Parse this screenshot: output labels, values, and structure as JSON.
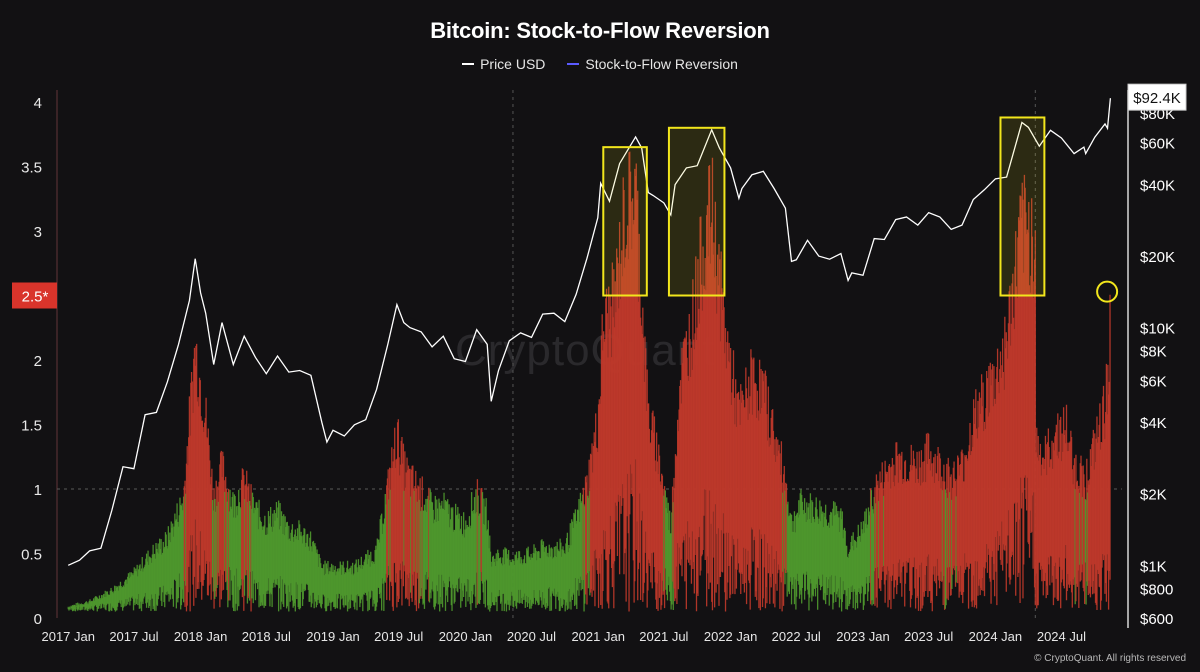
{
  "chart_data": {
    "type": "line",
    "title": "Bitcoin: Stock-to-Flow Reversion",
    "legend": [
      {
        "label": "Price USD",
        "color": "#ffffff"
      },
      {
        "label": "Stock-to-Flow Reversion",
        "color": "#5b5bff"
      }
    ],
    "legend_position": "top-center",
    "x_axis": {
      "range": [
        "2016-12-01",
        "2024-12-15"
      ],
      "ticks": [
        {
          "date": "2017-01-01",
          "label": "2017 Jan"
        },
        {
          "date": "2017-07-01",
          "label": "2017 Jul"
        },
        {
          "date": "2018-01-01",
          "label": "2018 Jan"
        },
        {
          "date": "2018-07-01",
          "label": "2018 Jul"
        },
        {
          "date": "2019-01-01",
          "label": "2019 Jan"
        },
        {
          "date": "2019-07-01",
          "label": "2019 Jul"
        },
        {
          "date": "2020-01-01",
          "label": "2020 Jan"
        },
        {
          "date": "2020-07-01",
          "label": "2020 Jul"
        },
        {
          "date": "2021-01-01",
          "label": "2021 Jan"
        },
        {
          "date": "2021-07-01",
          "label": "2021 Jul"
        },
        {
          "date": "2022-01-01",
          "label": "2022 Jan"
        },
        {
          "date": "2022-07-01",
          "label": "2022 Jul"
        },
        {
          "date": "2023-01-01",
          "label": "2023 Jan"
        },
        {
          "date": "2023-07-01",
          "label": "2023 Jul"
        },
        {
          "date": "2024-01-01",
          "label": "2024 Jan"
        },
        {
          "date": "2024-07-01",
          "label": "2024 Jul"
        }
      ],
      "halving_lines": [
        "2020-05-11",
        "2024-04-20"
      ]
    },
    "y_left": {
      "range": [
        0,
        4
      ],
      "scale": "linear",
      "ticks": [
        {
          "value": 0,
          "label": "0"
        },
        {
          "value": 0.5,
          "label": "0.5"
        },
        {
          "value": 1,
          "label": "1"
        },
        {
          "value": 1.5,
          "label": "1.5"
        },
        {
          "value": 2,
          "label": "2"
        },
        {
          "value": 3,
          "label": "3"
        },
        {
          "value": 3.5,
          "label": "3.5"
        },
        {
          "value": 4,
          "label": "4"
        }
      ],
      "marker": {
        "value": 2.5,
        "label": "2.5*",
        "color": "#d9342b"
      },
      "reference_line": 1
    },
    "y_right": {
      "range": [
        600,
        100000
      ],
      "scale": "log",
      "ticks": [
        {
          "value": 600,
          "label": "$600"
        },
        {
          "value": 800,
          "label": "$800"
        },
        {
          "value": 1000,
          "label": "$1K"
        },
        {
          "value": 2000,
          "label": "$2K"
        },
        {
          "value": 4000,
          "label": "$4K"
        },
        {
          "value": 6000,
          "label": "$6K"
        },
        {
          "value": 8000,
          "label": "$8K"
        },
        {
          "value": 10000,
          "label": "$10K"
        },
        {
          "value": 20000,
          "label": "$20K"
        },
        {
          "value": 40000,
          "label": "$40K"
        },
        {
          "value": 60000,
          "label": "$60K"
        },
        {
          "value": 80000,
          "label": "$80K"
        }
      ],
      "current_price_label": "$92.4K"
    },
    "series_colors": {
      "s2f_below_1": "#4f9a2e",
      "s2f_above_1": "#c0392b"
    },
    "price_series": [
      [
        "2017-01-01",
        1000
      ],
      [
        "2017-02-01",
        1050
      ],
      [
        "2017-03-01",
        1150
      ],
      [
        "2017-04-01",
        1180
      ],
      [
        "2017-05-01",
        1700
      ],
      [
        "2017-06-01",
        2600
      ],
      [
        "2017-07-01",
        2550
      ],
      [
        "2017-08-01",
        4300
      ],
      [
        "2017-09-01",
        4400
      ],
      [
        "2017-10-01",
        5900
      ],
      [
        "2017-11-01",
        8500
      ],
      [
        "2017-12-01",
        13000
      ],
      [
        "2017-12-17",
        19500
      ],
      [
        "2018-01-01",
        14000
      ],
      [
        "2018-01-15",
        11500
      ],
      [
        "2018-02-06",
        7000
      ],
      [
        "2018-03-01",
        10500
      ],
      [
        "2018-04-01",
        7000
      ],
      [
        "2018-05-01",
        9200
      ],
      [
        "2018-06-01",
        7500
      ],
      [
        "2018-07-01",
        6400
      ],
      [
        "2018-08-01",
        7600
      ],
      [
        "2018-09-01",
        6500
      ],
      [
        "2018-10-01",
        6600
      ],
      [
        "2018-11-01",
        6300
      ],
      [
        "2018-12-01",
        4000
      ],
      [
        "2018-12-15",
        3300
      ],
      [
        "2019-01-01",
        3700
      ],
      [
        "2019-02-01",
        3500
      ],
      [
        "2019-03-01",
        3900
      ],
      [
        "2019-04-01",
        4100
      ],
      [
        "2019-05-01",
        5500
      ],
      [
        "2019-06-01",
        8500
      ],
      [
        "2019-06-26",
        12500
      ],
      [
        "2019-07-15",
        10500
      ],
      [
        "2019-08-01",
        10000
      ],
      [
        "2019-09-01",
        9600
      ],
      [
        "2019-10-01",
        8300
      ],
      [
        "2019-11-01",
        9200
      ],
      [
        "2019-12-01",
        7400
      ],
      [
        "2020-01-01",
        7200
      ],
      [
        "2020-02-01",
        9800
      ],
      [
        "2020-03-01",
        8500
      ],
      [
        "2020-03-12",
        4900
      ],
      [
        "2020-04-01",
        6600
      ],
      [
        "2020-05-01",
        8800
      ],
      [
        "2020-06-01",
        9500
      ],
      [
        "2020-07-01",
        9100
      ],
      [
        "2020-08-01",
        11400
      ],
      [
        "2020-09-01",
        11500
      ],
      [
        "2020-10-01",
        10600
      ],
      [
        "2020-11-01",
        13800
      ],
      [
        "2020-12-01",
        19600
      ],
      [
        "2020-12-31",
        29000
      ],
      [
        "2021-01-08",
        40500
      ],
      [
        "2021-02-01",
        34000
      ],
      [
        "2021-03-01",
        49000
      ],
      [
        "2021-04-14",
        63500
      ],
      [
        "2021-05-01",
        57000
      ],
      [
        "2021-05-19",
        37000
      ],
      [
        "2021-06-01",
        36000
      ],
      [
        "2021-07-01",
        33500
      ],
      [
        "2021-07-20",
        29800
      ],
      [
        "2021-08-01",
        40000
      ],
      [
        "2021-09-01",
        47000
      ],
      [
        "2021-10-01",
        48000
      ],
      [
        "2021-11-10",
        68000
      ],
      [
        "2021-12-01",
        57000
      ],
      [
        "2022-01-01",
        47000
      ],
      [
        "2022-01-24",
        35000
      ],
      [
        "2022-02-01",
        38500
      ],
      [
        "2022-03-01",
        44000
      ],
      [
        "2022-04-01",
        45500
      ],
      [
        "2022-05-01",
        38500
      ],
      [
        "2022-06-01",
        31800
      ],
      [
        "2022-06-18",
        19000
      ],
      [
        "2022-07-01",
        19300
      ],
      [
        "2022-08-01",
        23300
      ],
      [
        "2022-09-01",
        20000
      ],
      [
        "2022-10-01",
        19400
      ],
      [
        "2022-11-01",
        20500
      ],
      [
        "2022-11-21",
        15800
      ],
      [
        "2022-12-01",
        17000
      ],
      [
        "2023-01-01",
        16600
      ],
      [
        "2023-02-01",
        23700
      ],
      [
        "2023-03-01",
        23500
      ],
      [
        "2023-04-01",
        28500
      ],
      [
        "2023-05-01",
        29200
      ],
      [
        "2023-06-01",
        27000
      ],
      [
        "2023-07-01",
        30500
      ],
      [
        "2023-08-01",
        29200
      ],
      [
        "2023-09-01",
        25900
      ],
      [
        "2023-10-01",
        27000
      ],
      [
        "2023-11-01",
        34600
      ],
      [
        "2023-12-01",
        38000
      ],
      [
        "2024-01-01",
        42300
      ],
      [
        "2024-02-01",
        43000
      ],
      [
        "2024-03-01",
        62000
      ],
      [
        "2024-03-14",
        73000
      ],
      [
        "2024-04-01",
        69700
      ],
      [
        "2024-05-01",
        58000
      ],
      [
        "2024-06-01",
        67700
      ],
      [
        "2024-07-01",
        62800
      ],
      [
        "2024-08-05",
        54000
      ],
      [
        "2024-09-01",
        57500
      ],
      [
        "2024-09-06",
        54000
      ],
      [
        "2024-10-01",
        63300
      ],
      [
        "2024-10-29",
        72000
      ],
      [
        "2024-11-05",
        69000
      ],
      [
        "2024-11-13",
        92400
      ]
    ],
    "s2f_series": [
      [
        "2017-01-01",
        0.09
      ],
      [
        "2017-03-01",
        0.13
      ],
      [
        "2017-05-01",
        0.22
      ],
      [
        "2017-07-01",
        0.35
      ],
      [
        "2017-08-15",
        0.5
      ],
      [
        "2017-10-01",
        0.62
      ],
      [
        "2017-11-15",
        0.95
      ],
      [
        "2017-12-17",
        2.15
      ],
      [
        "2018-01-15",
        1.6
      ],
      [
        "2018-02-06",
        0.95
      ],
      [
        "2018-03-01",
        1.2
      ],
      [
        "2018-04-01",
        0.9
      ],
      [
        "2018-05-01",
        1.08
      ],
      [
        "2018-06-01",
        0.85
      ],
      [
        "2018-07-01",
        0.76
      ],
      [
        "2018-08-01",
        0.83
      ],
      [
        "2018-09-01",
        0.7
      ],
      [
        "2018-10-01",
        0.68
      ],
      [
        "2018-11-01",
        0.62
      ],
      [
        "2018-12-01",
        0.4
      ],
      [
        "2019-01-01",
        0.4
      ],
      [
        "2019-03-01",
        0.4
      ],
      [
        "2019-05-01",
        0.52
      ],
      [
        "2019-06-26",
        1.45
      ],
      [
        "2019-07-15",
        1.2
      ],
      [
        "2019-08-01",
        1.1
      ],
      [
        "2019-09-01",
        1.0
      ],
      [
        "2019-10-01",
        0.87
      ],
      [
        "2019-11-01",
        0.88
      ],
      [
        "2019-12-01",
        0.8
      ],
      [
        "2020-01-01",
        0.75
      ],
      [
        "2020-02-01",
        0.98
      ],
      [
        "2020-03-01",
        0.82
      ],
      [
        "2020-03-12",
        0.45
      ],
      [
        "2020-04-01",
        0.5
      ],
      [
        "2020-05-11",
        0.48
      ],
      [
        "2020-07-01",
        0.5
      ],
      [
        "2020-08-01",
        0.55
      ],
      [
        "2020-10-01",
        0.55
      ],
      [
        "2020-11-01",
        0.78
      ],
      [
        "2020-12-01",
        1.05
      ],
      [
        "2020-12-31",
        1.55
      ],
      [
        "2021-01-15",
        2.3
      ],
      [
        "2021-02-15",
        2.5
      ],
      [
        "2021-03-15",
        3.2
      ],
      [
        "2021-04-14",
        3.4
      ],
      [
        "2021-05-19",
        1.6
      ],
      [
        "2021-06-15",
        1.3
      ],
      [
        "2021-07-20",
        0.72
      ],
      [
        "2021-08-15",
        1.9
      ],
      [
        "2021-09-15",
        2.3
      ],
      [
        "2021-10-15",
        2.9
      ],
      [
        "2021-11-10",
        3.25
      ],
      [
        "2021-12-15",
        2.3
      ],
      [
        "2022-01-24",
        1.6
      ],
      [
        "2022-03-01",
        1.9
      ],
      [
        "2022-04-01",
        1.8
      ],
      [
        "2022-05-01",
        1.45
      ],
      [
        "2022-06-01",
        1.1
      ],
      [
        "2022-06-18",
        0.75
      ],
      [
        "2022-07-15",
        0.9
      ],
      [
        "2022-09-01",
        0.85
      ],
      [
        "2022-11-01",
        0.8
      ],
      [
        "2022-11-21",
        0.55
      ],
      [
        "2023-01-01",
        0.7
      ],
      [
        "2023-02-01",
        1.0
      ],
      [
        "2023-04-01",
        1.25
      ],
      [
        "2023-06-01",
        1.2
      ],
      [
        "2023-07-01",
        1.3
      ],
      [
        "2023-09-01",
        1.1
      ],
      [
        "2023-10-01",
        1.2
      ],
      [
        "2023-11-01",
        1.55
      ],
      [
        "2023-12-01",
        1.75
      ],
      [
        "2024-01-01",
        1.9
      ],
      [
        "2024-02-01",
        2.2
      ],
      [
        "2024-03-14",
        3.1
      ],
      [
        "2024-04-20",
        3.0
      ],
      [
        "2024-04-21",
        1.4
      ],
      [
        "2024-05-15",
        1.25
      ],
      [
        "2024-06-15",
        1.45
      ],
      [
        "2024-07-15",
        1.5
      ],
      [
        "2024-08-05",
        1.2
      ],
      [
        "2024-09-06",
        1.1
      ],
      [
        "2024-10-01",
        1.35
      ],
      [
        "2024-10-29",
        1.65
      ],
      [
        "2024-11-13",
        2.3
      ]
    ],
    "highlight_boxes": [
      {
        "start": "2021-01-15",
        "end": "2021-05-15",
        "y_low": 2.5,
        "y_high": 3.65
      },
      {
        "start": "2021-07-15",
        "end": "2021-12-15",
        "y_low": 2.5,
        "y_high": 3.8
      },
      {
        "start": "2024-01-15",
        "end": "2024-05-15",
        "y_low": 2.5,
        "y_high": 3.88
      }
    ],
    "highlight_color": "#f2e61c",
    "circle_marker": {
      "date": "2024-11-15",
      "value": 2.53,
      "color": "#f2e61c"
    }
  },
  "watermark": "CryptoQuant",
  "credit": "© CryptoQuant. All rights reserved"
}
